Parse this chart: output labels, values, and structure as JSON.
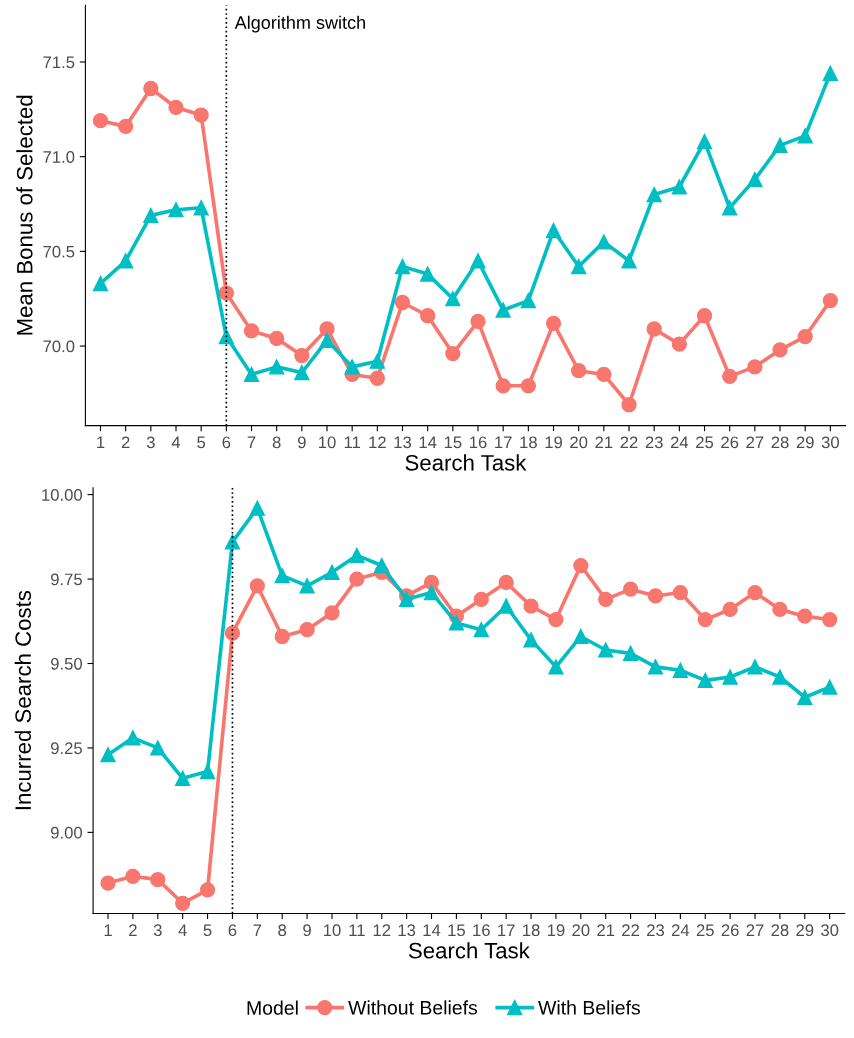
{
  "chart_data": [
    {
      "type": "line",
      "xlabel": "Search Task",
      "ylabel": "Mean Bonus of Selected",
      "x": [
        1,
        2,
        3,
        4,
        5,
        6,
        7,
        8,
        9,
        10,
        11,
        12,
        13,
        14,
        15,
        16,
        17,
        18,
        19,
        20,
        21,
        22,
        23,
        24,
        25,
        26,
        27,
        28,
        29,
        30
      ],
      "xlim": [
        0.4,
        30.6
      ],
      "xticks": [
        1,
        2,
        3,
        4,
        5,
        6,
        7,
        8,
        9,
        10,
        11,
        12,
        13,
        14,
        15,
        16,
        17,
        18,
        19,
        20,
        21,
        22,
        23,
        24,
        25,
        26,
        27,
        28,
        29,
        30
      ],
      "ylim": [
        69.58,
        71.8
      ],
      "yticks": [
        {
          "value": 70,
          "label": "70.0"
        },
        {
          "value": 70.5,
          "label": "70.5"
        },
        {
          "value": 71,
          "label": "71.0"
        },
        {
          "value": 71.5,
          "label": "71.5"
        }
      ],
      "grid": false,
      "legend": false,
      "ref_lines": [
        {
          "axis": "x",
          "value": 6,
          "line_style": "dotted",
          "color": "#000000"
        }
      ],
      "annotations": [
        {
          "text": "Algorithm switch",
          "x": 6,
          "y": 71.7
        }
      ],
      "series": [
        {
          "color": "#f8766d",
          "marker": "circle",
          "values": [
            71.19,
            71.16,
            71.36,
            71.26,
            71.22,
            70.28,
            70.08,
            70.04,
            69.95,
            70.09,
            69.85,
            69.83,
            70.23,
            70.16,
            69.96,
            70.13,
            69.79,
            69.79,
            70.12,
            69.87,
            69.85,
            69.69,
            70.09,
            70.01,
            70.16,
            69.84,
            69.89,
            69.98,
            70.05,
            70.24
          ]
        },
        {
          "color": "#00bfc4",
          "marker": "triangle",
          "values": [
            70.33,
            70.45,
            70.69,
            70.72,
            70.73,
            70.05,
            69.85,
            69.89,
            69.86,
            70.03,
            69.89,
            69.92,
            70.42,
            70.38,
            70.25,
            70.45,
            70.19,
            70.24,
            70.61,
            70.42,
            70.55,
            70.45,
            70.8,
            70.84,
            71.08,
            70.73,
            70.88,
            71.06,
            71.11,
            71.44
          ]
        }
      ]
    },
    {
      "type": "line",
      "xlabel": "Search Task",
      "ylabel": "Incurred Search Costs",
      "x": [
        1,
        2,
        3,
        4,
        5,
        6,
        7,
        8,
        9,
        10,
        11,
        12,
        13,
        14,
        15,
        16,
        17,
        18,
        19,
        20,
        21,
        22,
        23,
        24,
        25,
        26,
        27,
        28,
        29,
        30
      ],
      "xlim": [
        0.4,
        30.6
      ],
      "xticks": [
        1,
        2,
        3,
        4,
        5,
        6,
        7,
        8,
        9,
        10,
        11,
        12,
        13,
        14,
        15,
        16,
        17,
        18,
        19,
        20,
        21,
        22,
        23,
        24,
        25,
        26,
        27,
        28,
        29,
        30
      ],
      "ylim": [
        8.76,
        10.02
      ],
      "yticks": [
        {
          "value": 9,
          "label": "9.00"
        },
        {
          "value": 9.25,
          "label": "9.25"
        },
        {
          "value": 9.5,
          "label": "9.50"
        },
        {
          "value": 9.75,
          "label": "9.75"
        },
        {
          "value": 10,
          "label": "10.00"
        }
      ],
      "grid": false,
      "legend": "bottom",
      "legend_title": "Model",
      "ref_lines": [
        {
          "axis": "x",
          "value": 6,
          "line_style": "dotted",
          "color": "#000000"
        }
      ],
      "series": [
        {
          "name": "Without Beliefs",
          "color": "#f8766d",
          "marker": "circle",
          "values": [
            8.85,
            8.87,
            8.86,
            8.79,
            8.83,
            9.59,
            9.73,
            9.58,
            9.6,
            9.65,
            9.75,
            9.77,
            9.7,
            9.74,
            9.64,
            9.69,
            9.74,
            9.67,
            9.63,
            9.79,
            9.69,
            9.72,
            9.7,
            9.71,
            9.63,
            9.66,
            9.71,
            9.66,
            9.64,
            9.63
          ]
        },
        {
          "name": "With Beliefs",
          "color": "#00bfc4",
          "marker": "triangle",
          "values": [
            9.23,
            9.28,
            9.25,
            9.16,
            9.18,
            9.86,
            9.96,
            9.76,
            9.73,
            9.77,
            9.82,
            9.79,
            9.69,
            9.71,
            9.62,
            9.6,
            9.67,
            9.57,
            9.49,
            9.58,
            9.54,
            9.53,
            9.49,
            9.48,
            9.45,
            9.46,
            9.49,
            9.46,
            9.4,
            9.43
          ]
        }
      ]
    }
  ]
}
